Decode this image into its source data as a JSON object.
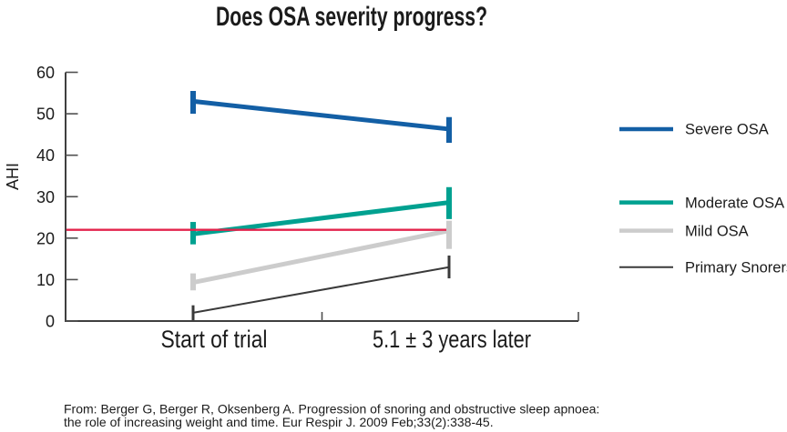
{
  "title": "Does OSA severity progress?",
  "citation": {
    "line1": "From: Berger G, Berger R, Oksenberg A. Progression of snoring and obstructive sleep apnoea:",
    "line2": "the role of increasing weight and time. Eur Respir J. 2009 Feb;33(2):338-45."
  },
  "chart_data": {
    "type": "line",
    "title": "Does OSA severity progress?",
    "ylabel": "AHI",
    "xlabel": "",
    "x_categories": [
      "Start of trial",
      "5.1 ± 3 years later"
    ],
    "y_ticks": [
      0,
      10,
      20,
      30,
      40,
      50,
      60
    ],
    "ylim": [
      0,
      60
    ],
    "grid": false,
    "legend_position": "right",
    "reference_line": {
      "value": 22,
      "color": "#e3234b"
    },
    "axis_color": "#3f3f3f",
    "series": [
      {
        "name": "Severe OSA",
        "color": "#135fa5",
        "thickness": 5,
        "values": [
          53,
          46.3
        ],
        "error_low": [
          50,
          43
        ],
        "error_high": [
          55.5,
          49.2
        ]
      },
      {
        "name": "Moderate OSA",
        "color": "#00a190",
        "thickness": 5,
        "values": [
          21,
          28.6
        ],
        "error_low": [
          18.5,
          24.6
        ],
        "error_high": [
          23.9,
          32.3
        ]
      },
      {
        "name": "Mild OSA",
        "color": "#cccccc",
        "thickness": 5,
        "values": [
          9.3,
          21.8
        ],
        "error_low": [
          7.4,
          17.4
        ],
        "error_high": [
          11.5,
          24.2
        ]
      },
      {
        "name": "Primary Snorers",
        "color": "#3a3a3a",
        "thickness": 2,
        "values": [
          2,
          13
        ],
        "error_low": [
          0.2,
          10.3
        ],
        "error_high": [
          3.8,
          15.8
        ]
      }
    ]
  }
}
